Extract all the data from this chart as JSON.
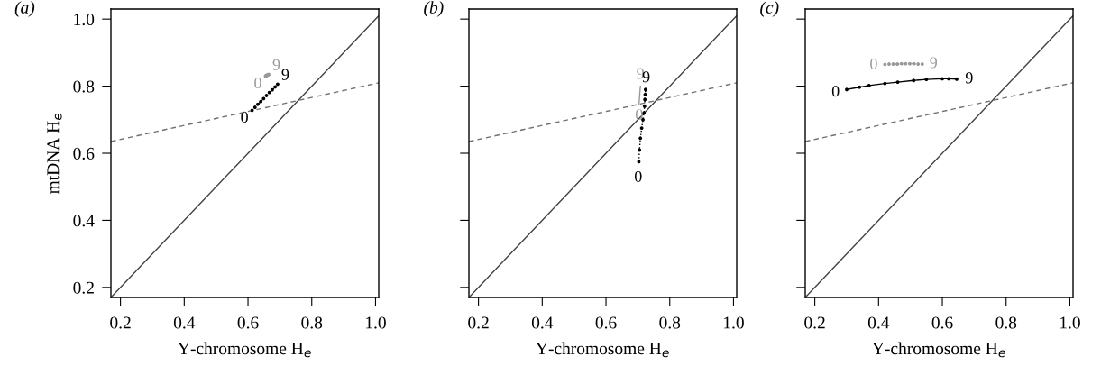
{
  "chart_data": [
    {
      "type": "line",
      "title": "(a)",
      "xlabel": "Y-chromosome H$_{e}$",
      "ylabel": "mtDNA H$_{e}$",
      "xlim": [
        0.17,
        1.01
      ],
      "ylim": [
        0.17,
        1.03
      ],
      "xticks": [
        {
          "value": 0.2,
          "label": "0.2"
        },
        {
          "value": 0.4,
          "label": "0.4"
        },
        {
          "value": 0.6,
          "label": "0.6"
        },
        {
          "value": 0.8,
          "label": "0.8"
        },
        {
          "value": 1.0,
          "label": "1.0"
        }
      ],
      "yticks": [
        {
          "value": 0.2,
          "label": "0.2"
        },
        {
          "value": 0.4,
          "label": "0.4"
        },
        {
          "value": 0.6,
          "label": "0.6"
        },
        {
          "value": 0.8,
          "label": "0.8"
        },
        {
          "value": 1.0,
          "label": "1.0"
        }
      ],
      "grid": false,
      "legend": false,
      "series": [
        {
          "color": "#404040",
          "x": [
            0.17,
            1.01
          ],
          "values": [
            0.17,
            1.01
          ],
          "line_style": "solid",
          "marker": "none"
        },
        {
          "color": "#707070",
          "x": [
            0.17,
            1.01
          ],
          "values": [
            0.635,
            0.81
          ],
          "line_style": "dashed",
          "marker": "none"
        },
        {
          "color": "#999999",
          "x": [
            0.655,
            0.656,
            0.657,
            0.658,
            0.659,
            0.66,
            0.661,
            0.662,
            0.664,
            0.665
          ],
          "values": [
            0.83,
            0.831,
            0.831,
            0.832,
            0.832,
            0.833,
            0.833,
            0.834,
            0.834,
            0.835
          ],
          "line_style": "dotted",
          "marker": "circle"
        },
        {
          "color": "#000000",
          "x": [
            0.613,
            0.622,
            0.631,
            0.64,
            0.649,
            0.658,
            0.667,
            0.676,
            0.685,
            0.693
          ],
          "values": [
            0.728,
            0.737,
            0.746,
            0.754,
            0.763,
            0.772,
            0.781,
            0.789,
            0.798,
            0.806
          ],
          "line_style": "dotted",
          "marker": "circle"
        }
      ],
      "annotations": [
        {
          "text": "0",
          "x": 0.655,
          "y": 0.83
        },
        {
          "text": "9",
          "x": 0.665,
          "y": 0.835
        },
        {
          "text": "0",
          "x": 0.613,
          "y": 0.728
        },
        {
          "text": "9",
          "x": 0.693,
          "y": 0.806
        }
      ]
    },
    {
      "type": "line",
      "title": "(b)",
      "xlabel": "Y-chromosome H$_{e}$",
      "xlim": [
        0.17,
        1.01
      ],
      "ylim": [
        0.17,
        1.03
      ],
      "xticks": [
        {
          "value": 0.2,
          "label": "0.2"
        },
        {
          "value": 0.4,
          "label": "0.4"
        },
        {
          "value": 0.6,
          "label": "0.6"
        },
        {
          "value": 0.8,
          "label": "0.8"
        },
        {
          "value": 1.0,
          "label": "1.0"
        }
      ],
      "yticks": [
        0.2,
        0.4,
        0.6,
        0.8,
        1.0
      ],
      "tick_labels": "x",
      "grid": false,
      "legend": false,
      "series": [
        {
          "color": "#404040",
          "x": [
            0.17,
            1.01
          ],
          "values": [
            0.17,
            1.01
          ],
          "line_style": "solid",
          "marker": "none"
        },
        {
          "color": "#707070",
          "x": [
            0.17,
            1.01
          ],
          "values": [
            0.635,
            0.81
          ],
          "line_style": "dashed",
          "marker": "none"
        },
        {
          "color": "#000000",
          "x": [
            0.703,
            0.705,
            0.708,
            0.712,
            0.716,
            0.719,
            0.721,
            0.722,
            0.723,
            0.724
          ],
          "values": [
            0.575,
            0.61,
            0.645,
            0.675,
            0.7,
            0.72,
            0.74,
            0.76,
            0.775,
            0.79
          ],
          "line_style": "dotted",
          "marker": "circle"
        },
        {
          "color": "#999999",
          "x": [
            0.704,
            0.704,
            0.705,
            0.705,
            0.706,
            0.706,
            0.707,
            0.707,
            0.708,
            0.708
          ],
          "values": [
            0.745,
            0.755,
            0.762,
            0.768,
            0.775,
            0.781,
            0.786,
            0.791,
            0.796,
            0.8
          ],
          "line_style": "solid",
          "marker": "none"
        }
      ],
      "annotations": [
        {
          "text": "0",
          "x": 0.704,
          "y": 0.745
        },
        {
          "text": "9",
          "x": 0.708,
          "y": 0.8
        },
        {
          "text": "0",
          "x": 0.703,
          "y": 0.56
        },
        {
          "text": "9",
          "x": 0.724,
          "y": 0.79
        }
      ]
    },
    {
      "type": "line",
      "title": "(c)",
      "xlabel": "Y-chromosome H$_{e}$",
      "xlim": [
        0.17,
        1.01
      ],
      "ylim": [
        0.17,
        1.03
      ],
      "xticks": [
        {
          "value": 0.2,
          "label": "0.2"
        },
        {
          "value": 0.4,
          "label": "0.4"
        },
        {
          "value": 0.6,
          "label": "0.6"
        },
        {
          "value": 0.8,
          "label": "0.8"
        },
        {
          "value": 1.0,
          "label": "1.0"
        }
      ],
      "yticks": [
        0.2,
        0.4,
        0.6,
        0.8,
        1.0
      ],
      "tick_labels": "x",
      "grid": false,
      "legend": false,
      "series": [
        {
          "color": "#404040",
          "x": [
            0.17,
            1.01
          ],
          "values": [
            0.17,
            1.01
          ],
          "line_style": "solid",
          "marker": "none"
        },
        {
          "color": "#707070",
          "x": [
            0.17,
            1.01
          ],
          "values": [
            0.635,
            0.81
          ],
          "line_style": "dashed",
          "marker": "none"
        },
        {
          "color": "#999999",
          "x": [
            0.42,
            0.433,
            0.446,
            0.459,
            0.472,
            0.485,
            0.498,
            0.511,
            0.524,
            0.537
          ],
          "values": [
            0.865,
            0.866,
            0.866,
            0.866,
            0.867,
            0.867,
            0.867,
            0.867,
            0.866,
            0.866
          ],
          "line_style": "dotted",
          "marker": "circle"
        },
        {
          "color": "#000000",
          "x": [
            0.3,
            0.34,
            0.37,
            0.42,
            0.46,
            0.51,
            0.55,
            0.6,
            0.62,
            0.645
          ],
          "values": [
            0.79,
            0.797,
            0.802,
            0.808,
            0.812,
            0.817,
            0.82,
            0.822,
            0.822,
            0.821
          ],
          "line_style": "solid",
          "marker": "circle"
        }
      ],
      "annotations": [
        {
          "text": "0",
          "x": 0.42,
          "y": 0.865
        },
        {
          "text": "9",
          "x": 0.537,
          "y": 0.866
        },
        {
          "text": "0",
          "x": 0.3,
          "y": 0.787
        },
        {
          "text": "9",
          "x": 0.649,
          "y": 0.822
        }
      ]
    }
  ]
}
